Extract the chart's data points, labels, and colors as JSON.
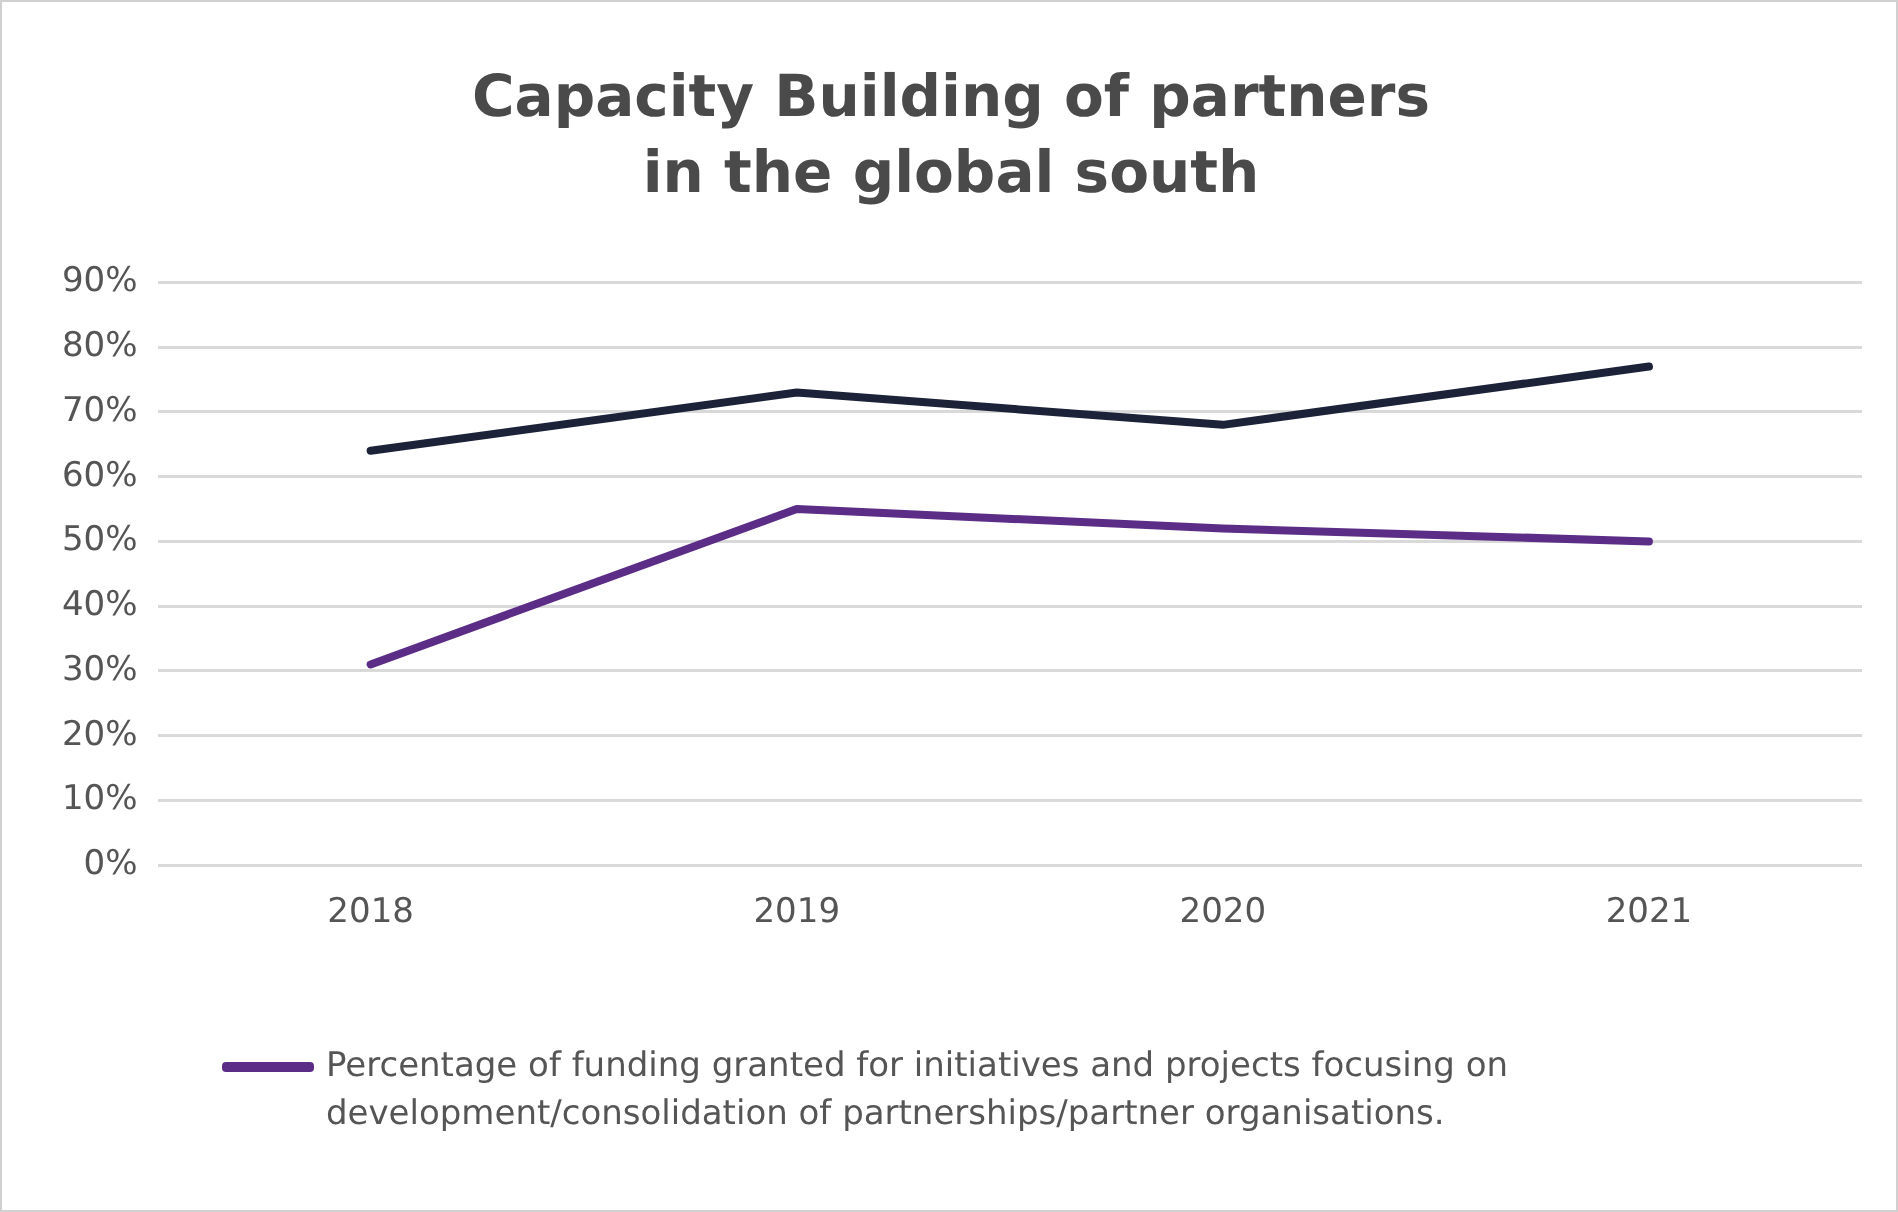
{
  "chart_data": {
    "type": "line",
    "title": "Capacity Building of partners\nin the global south",
    "categories": [
      "2018",
      "2019",
      "2020",
      "2021"
    ],
    "series": [
      {
        "color": "#1c2237",
        "values": [
          64,
          73,
          68,
          77
        ]
      },
      {
        "name": "Percentage of funding granted for initiatives and projects focusing on development/consolidation of partnerships/partner organisations.",
        "color": "#5b2d86",
        "values": [
          31,
          55,
          52,
          50
        ]
      }
    ],
    "ylim": [
      0,
      90
    ],
    "yticks": [
      {
        "value": 0,
        "label": "0%"
      },
      {
        "value": 10,
        "label": "10%"
      },
      {
        "value": 20,
        "label": "20%"
      },
      {
        "value": 30,
        "label": "30%"
      },
      {
        "value": 40,
        "label": "40%"
      },
      {
        "value": 50,
        "label": "50%"
      },
      {
        "value": 60,
        "label": "60%"
      },
      {
        "value": 70,
        "label": "70%"
      },
      {
        "value": 80,
        "label": "80%"
      },
      {
        "value": 90,
        "label": "90%"
      }
    ],
    "grid": "y",
    "legend": "bottom",
    "marker": "none",
    "line_style": "solid"
  }
}
